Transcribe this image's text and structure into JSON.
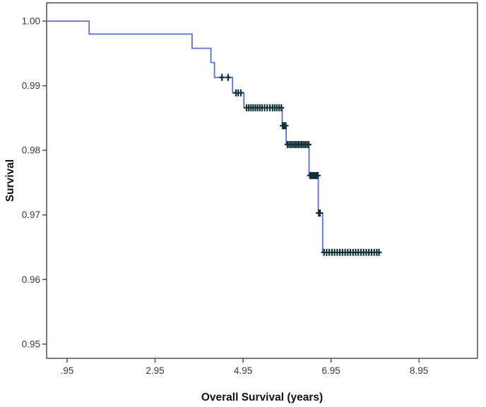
{
  "figure": {
    "background": "#ffffff",
    "frame_color": "#454545"
  },
  "chart_data": {
    "type": "line",
    "subtype": "kaplan-meier-step",
    "title": "",
    "xlabel": "Overall Survival (years)",
    "ylabel": "Survival",
    "legend": null,
    "grid": false,
    "xlim": [
      0.484,
      10.28
    ],
    "ylim": [
      0.9478,
      1.00284
    ],
    "x_ticks": [
      {
        "value": 0.95,
        "label": ".95"
      },
      {
        "value": 2.95,
        "label": "2.95"
      },
      {
        "value": 4.95,
        "label": "4.95"
      },
      {
        "value": 6.95,
        "label": "6.95"
      },
      {
        "value": 8.95,
        "label": "8.95"
      }
    ],
    "y_ticks": [
      {
        "value": 1.0,
        "label": "1.00"
      },
      {
        "value": 0.99,
        "label": "0.99"
      },
      {
        "value": 0.98,
        "label": "0.98"
      },
      {
        "value": 0.97,
        "label": "0.97"
      },
      {
        "value": 0.96,
        "label": "0.96"
      },
      {
        "value": 0.95,
        "label": "0.95"
      }
    ],
    "line_color": "#5e6fc9",
    "censor_color": "#123239",
    "curve": {
      "start_t": 0.484,
      "levels": [
        {
          "s": 1.0,
          "until": 1.45
        },
        {
          "s": 0.998,
          "until": 3.79
        },
        {
          "s": 0.9958,
          "until": 4.22
        },
        {
          "s": 0.9936,
          "until": 4.3
        },
        {
          "s": 0.9913,
          "until": 4.71
        },
        {
          "s": 0.9889,
          "until": 4.97
        },
        {
          "s": 0.9866,
          "until": 5.84
        },
        {
          "s": 0.9838,
          "until": 5.93
        },
        {
          "s": 0.9809,
          "until": 6.45
        },
        {
          "s": 0.9761,
          "until": 6.66
        },
        {
          "s": 0.9703,
          "until": 6.76
        },
        {
          "s": 0.9642,
          "until": 8.08
        }
      ]
    },
    "censor_marks": [
      {
        "s": 0.9913,
        "t": [
          4.47,
          4.61
        ]
      },
      {
        "s": 0.9889,
        "t": [
          4.79,
          4.84,
          4.9
        ]
      },
      {
        "s": 0.9866,
        "t": [
          5.03,
          5.08,
          5.13,
          5.18,
          5.23,
          5.28,
          5.33,
          5.38,
          5.44,
          5.5,
          5.56,
          5.62,
          5.67,
          5.72,
          5.77,
          5.82
        ]
      },
      {
        "s": 0.9838,
        "t": [
          5.85,
          5.87,
          5.9,
          5.92
        ]
      },
      {
        "s": 0.9809,
        "t": [
          5.96,
          6.0,
          6.04,
          6.08,
          6.12,
          6.16,
          6.2,
          6.24,
          6.28,
          6.32,
          6.36,
          6.4,
          6.44
        ]
      },
      {
        "s": 0.9761,
        "t": [
          6.47,
          6.5,
          6.53,
          6.56,
          6.59,
          6.62,
          6.65
        ]
      },
      {
        "s": 0.9703,
        "t": [
          6.67,
          6.7
        ]
      },
      {
        "s": 0.9642,
        "t": [
          6.79,
          6.85,
          6.91,
          6.97,
          7.03,
          7.09,
          7.15,
          7.21,
          7.27,
          7.33,
          7.39,
          7.45,
          7.51,
          7.57,
          7.63,
          7.69,
          7.75,
          7.81,
          7.87,
          7.93,
          7.99,
          8.04
        ]
      }
    ]
  }
}
